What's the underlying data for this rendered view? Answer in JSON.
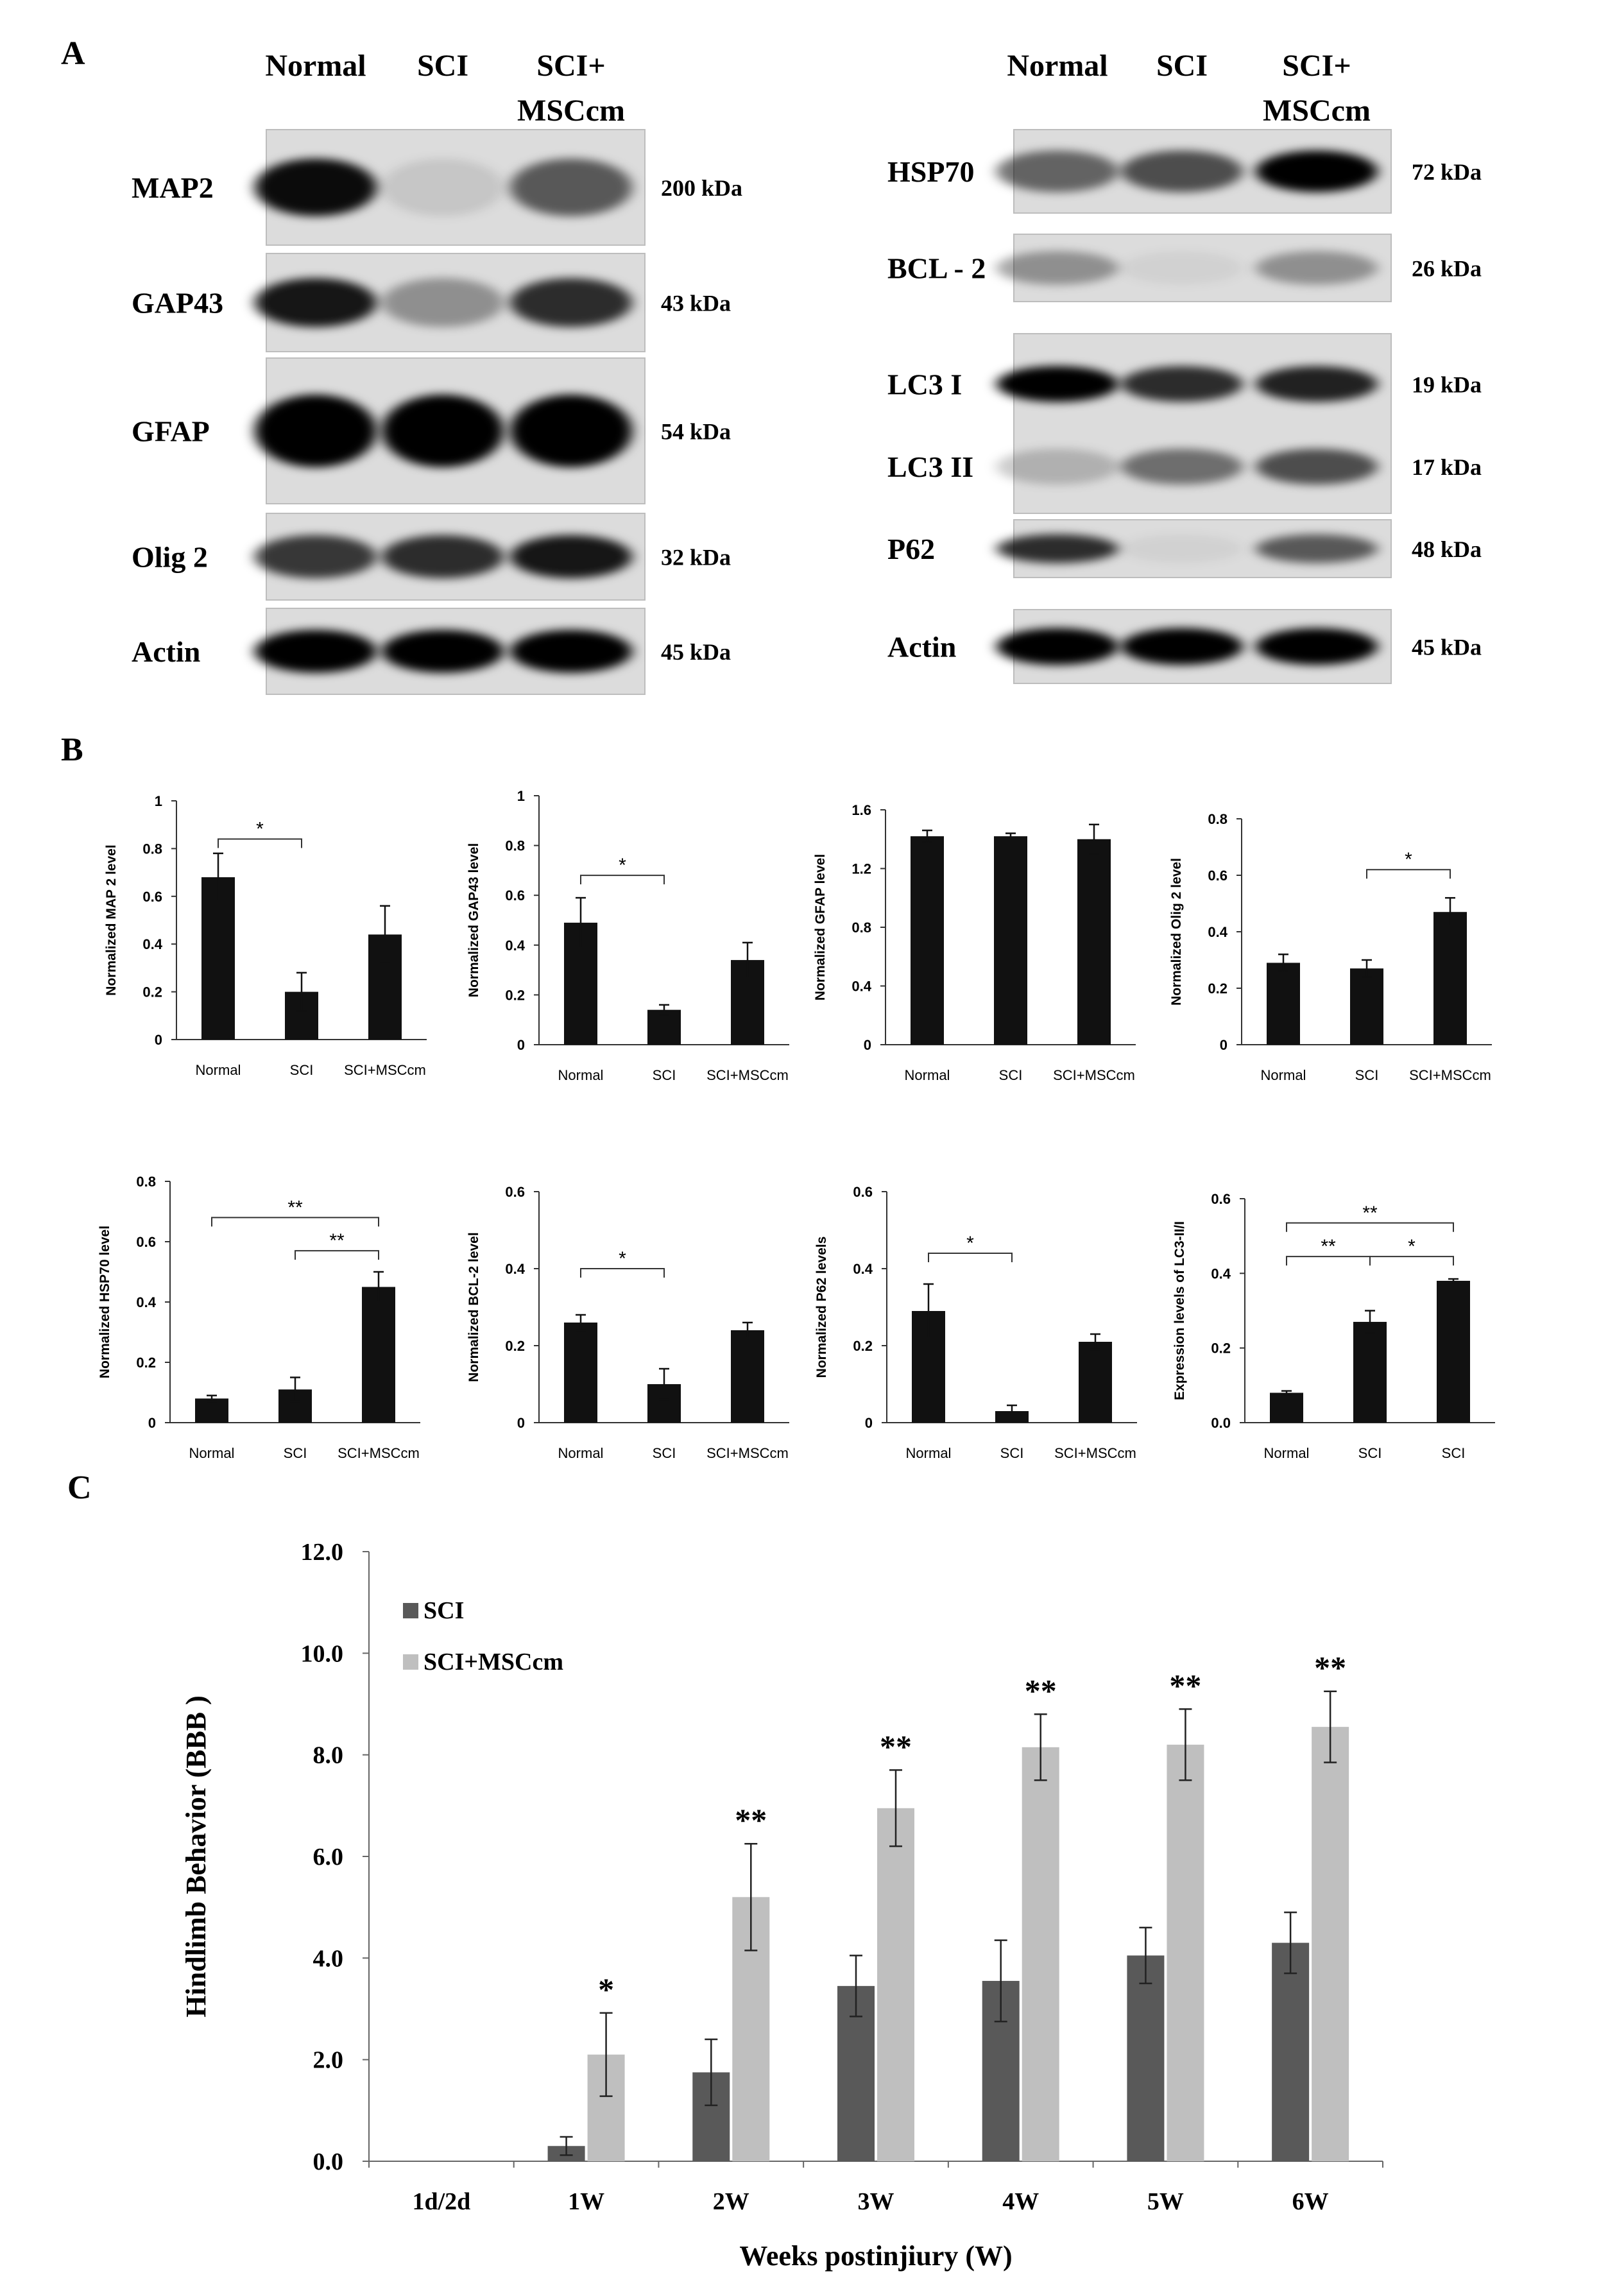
{
  "panel_a": {
    "letter": "A",
    "left": {
      "lanes": [
        "Normal",
        "SCI",
        "SCI+",
        "MSCcm"
      ],
      "blots": [
        {
          "label": "MAP2",
          "kda": "200 kDa",
          "intensity": [
            0.95,
            0.1,
            0.6
          ],
          "bands": 1
        },
        {
          "label": "GAP43",
          "kda": "43 kDa",
          "intensity": [
            0.9,
            0.35,
            0.8
          ],
          "bands": 1
        },
        {
          "label": "GFAP",
          "kda": "54 kDa",
          "intensity": [
            1.0,
            1.0,
            1.0
          ],
          "bands": 1
        },
        {
          "label": "Olig 2",
          "kda": "32 kDa",
          "intensity": [
            0.75,
            0.8,
            0.9
          ],
          "bands": 1
        },
        {
          "label": "Actin",
          "kda": "45 kDa",
          "intensity": [
            1.0,
            1.0,
            1.0
          ],
          "bands": 1
        }
      ]
    },
    "right": {
      "lanes": [
        "Normal",
        "SCI",
        "SCI+",
        "MSCcm"
      ],
      "blots": [
        {
          "label": "HSP70",
          "kda": "72 kDa",
          "intensity": [
            0.55,
            0.65,
            1.0
          ],
          "bands": 1
        },
        {
          "label": "BCL - 2",
          "kda": "26 kDa",
          "intensity": [
            0.35,
            0.05,
            0.35
          ],
          "bands": 1
        },
        {
          "label": "LC3 I",
          "kda": "19 kDa",
          "label2": "LC3 II",
          "kda2": "17 kDa",
          "intensity": [
            1.0,
            0.8,
            0.85
          ],
          "intensity2": [
            0.2,
            0.5,
            0.65
          ],
          "bands": 2
        },
        {
          "label": "P62",
          "kda": "48 kDa",
          "intensity": [
            0.8,
            0.05,
            0.6
          ],
          "bands": 1
        },
        {
          "label": "Actin",
          "kda": "45 kDa",
          "intensity": [
            1.0,
            1.0,
            1.0
          ],
          "bands": 1
        }
      ]
    }
  },
  "panel_b": {
    "letter": "B",
    "color_bar": "#111111"
  },
  "panel_c": {
    "letter": "C",
    "colors": {
      "sci": "#595959",
      "msccm": "#bfbfbf"
    }
  },
  "chart_data": [
    {
      "type": "bar",
      "ylabel": "Normalized MAP 2 level",
      "categories": [
        "Normal",
        "SCI",
        "SCI+MSCcm"
      ],
      "series": [
        {
          "values": [
            0.68,
            0.2,
            0.44
          ],
          "errors": [
            0.1,
            0.08,
            0.12
          ]
        }
      ],
      "ylim": [
        0,
        1
      ],
      "yticks": [
        "0",
        "0.2",
        "0.4",
        "0.6",
        "0.8",
        "1"
      ],
      "significance": [
        {
          "from": 0,
          "to": 1,
          "label": "*",
          "y": 0.84
        }
      ]
    },
    {
      "type": "bar",
      "ylabel": "Normalized GAP43 level",
      "categories": [
        "Normal",
        "SCI",
        "SCI+MSCcm"
      ],
      "series": [
        {
          "values": [
            0.49,
            0.14,
            0.34
          ],
          "errors": [
            0.1,
            0.02,
            0.07
          ]
        }
      ],
      "ylim": [
        0,
        1
      ],
      "yticks": [
        "0",
        "0.2",
        "0.4",
        "0.6",
        "0.8",
        "1"
      ],
      "significance": [
        {
          "from": 0,
          "to": 1,
          "label": "*",
          "y": 0.68
        }
      ]
    },
    {
      "type": "bar",
      "ylabel": "Normalized GFAP level",
      "categories": [
        "Normal",
        "SCI",
        "SCI+MSCcm"
      ],
      "series": [
        {
          "values": [
            1.42,
            1.42,
            1.4
          ],
          "errors": [
            0.04,
            0.02,
            0.1
          ]
        }
      ],
      "ylim": [
        0,
        1.6
      ],
      "yticks": [
        "0",
        "0.4",
        "0.8",
        "1.2",
        "1.6"
      ],
      "significance": []
    },
    {
      "type": "bar",
      "ylabel": "Normalized Olig 2 level",
      "categories": [
        "Normal",
        "SCI",
        "SCI+MSCcm"
      ],
      "series": [
        {
          "values": [
            0.29,
            0.27,
            0.47
          ],
          "errors": [
            0.03,
            0.03,
            0.05
          ]
        }
      ],
      "ylim": [
        0,
        0.8
      ],
      "yticks": [
        "0",
        "0.2",
        "0.4",
        "0.6",
        "0.8"
      ],
      "significance": [
        {
          "from": 1,
          "to": 2,
          "label": "*",
          "y": 0.62
        }
      ]
    },
    {
      "type": "bar",
      "ylabel": "Normalized HSP70 level",
      "categories": [
        "Normal",
        "SCI",
        "SCI+MSCcm"
      ],
      "series": [
        {
          "values": [
            0.08,
            0.11,
            0.45
          ],
          "errors": [
            0.01,
            0.04,
            0.05
          ]
        }
      ],
      "ylim": [
        0,
        0.8
      ],
      "yticks": [
        "0",
        "0.2",
        "0.4",
        "0.6",
        "0.8"
      ],
      "significance": [
        {
          "from": 0,
          "to": 2,
          "label": "**",
          "y": 0.68
        },
        {
          "from": 1,
          "to": 2,
          "label": "**",
          "y": 0.57
        }
      ]
    },
    {
      "type": "bar",
      "ylabel": "Normalized BCL-2 level",
      "categories": [
        "Normal",
        "SCI",
        "SCI+MSCcm"
      ],
      "series": [
        {
          "values": [
            0.26,
            0.1,
            0.24
          ],
          "errors": [
            0.02,
            0.04,
            0.02
          ]
        }
      ],
      "ylim": [
        0,
        0.6
      ],
      "yticks": [
        "0",
        "0.2",
        "0.4",
        "0.6"
      ],
      "significance": [
        {
          "from": 0,
          "to": 1,
          "label": "*",
          "y": 0.4
        }
      ]
    },
    {
      "type": "bar",
      "ylabel": "Normalized P62 levels",
      "categories": [
        "Normal",
        "SCI",
        "SCI+MSCcm"
      ],
      "series": [
        {
          "values": [
            0.29,
            0.03,
            0.21
          ],
          "errors": [
            0.07,
            0.015,
            0.02
          ]
        }
      ],
      "ylim": [
        0,
        0.6
      ],
      "yticks": [
        "0",
        "0.2",
        "0.4",
        "0.6"
      ],
      "significance": [
        {
          "from": 0,
          "to": 1,
          "label": "*",
          "y": 0.44
        }
      ]
    },
    {
      "type": "bar",
      "ylabel": "Expression levels of LC3-II/I",
      "categories": [
        "Normal",
        "SCI",
        "SCI"
      ],
      "series": [
        {
          "values": [
            0.08,
            0.27,
            0.38
          ],
          "errors": [
            0.005,
            0.03,
            0.005
          ]
        }
      ],
      "ylim": [
        0,
        0.6
      ],
      "yticks": [
        "0.0",
        "0.2",
        "0.4",
        "0.6"
      ],
      "significance": [
        {
          "from": 0,
          "to": 2,
          "label": "**",
          "y": 0.535
        },
        {
          "from": 0,
          "to": 1,
          "label": "**",
          "y": 0.445
        },
        {
          "from": 1,
          "to": 2,
          "label": "*",
          "y": 0.445
        }
      ]
    },
    {
      "type": "bar",
      "ylabel": "Hindlimb Behavior (BBB )",
      "xlabel": "Weeks postinjiury (W)",
      "categories": [
        "1d/2d",
        "1W",
        "2W",
        "3W",
        "4W",
        "5W",
        "6W"
      ],
      "series": [
        {
          "name": "SCI",
          "values": [
            0,
            0.3,
            1.75,
            3.45,
            3.55,
            4.05,
            4.3
          ],
          "errors": [
            0,
            0.18,
            0.65,
            0.6,
            0.8,
            0.55,
            0.6
          ]
        },
        {
          "name": "SCI+MSCcm",
          "values": [
            0,
            2.1,
            5.2,
            6.95,
            8.15,
            8.2,
            8.55
          ],
          "errors": [
            0,
            0.82,
            1.05,
            0.75,
            0.65,
            0.7,
            0.7
          ]
        }
      ],
      "significance_marks": [
        "",
        "*",
        "**",
        "**",
        "**",
        "**",
        "**"
      ],
      "ylim": [
        0,
        12
      ],
      "yticks": [
        "0.0",
        "2.0",
        "4.0",
        "6.0",
        "8.0",
        "10.0",
        "12.0"
      ],
      "legend": "top-left"
    }
  ]
}
